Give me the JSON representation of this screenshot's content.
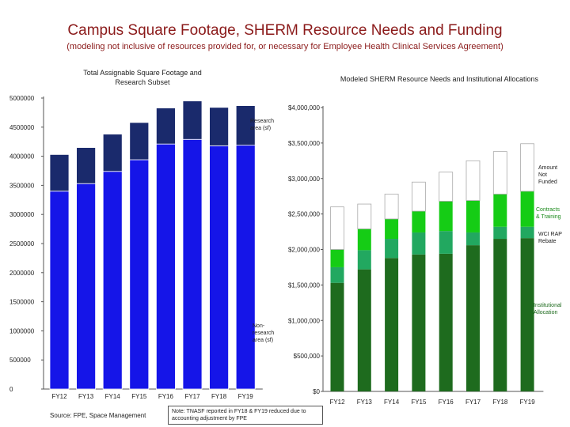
{
  "page": {
    "title": "Campus Square Footage, SHERM Resource Needs and Funding",
    "subtitle": "(modeling not inclusive of resources provided for, or necessary for Employee Health Clinical Services Agreement)",
    "source": "Source: FPE, Space Management",
    "note": "Note: TNASF reported in FY18 & FY19 reduced due to accounting adjustment by FPE"
  },
  "colors": {
    "title": "#8b1a1a",
    "research": "#1a2a6c",
    "non_research": "#1515e8",
    "institutional": "#1e6b1e",
    "wci_rap": "#22a860",
    "contracts": "#15cc15",
    "not_funded": "#ffffff"
  },
  "chart_data": [
    {
      "type": "bar",
      "stacked": true,
      "title": "Total Assignable Square Footage and Research Subset",
      "categories": [
        "FY12",
        "FY13",
        "FY14",
        "FY15",
        "FY16",
        "FY17",
        "FY18",
        "FY19"
      ],
      "ylim": [
        0,
        5000000
      ],
      "yticks": [
        "0",
        "500000",
        "1000000",
        "1500000",
        "2000000",
        "2500000",
        "3000000",
        "3500000",
        "4000000",
        "4500000",
        "5000000"
      ],
      "series": [
        {
          "name": "Non-research area (sf)",
          "values": [
            3400000,
            3530000,
            3740000,
            3940000,
            4210000,
            4290000,
            4180000,
            4190000
          ]
        },
        {
          "name": "Research area (sf)",
          "values": [
            630000,
            620000,
            640000,
            640000,
            620000,
            660000,
            660000,
            680000
          ]
        }
      ],
      "labels": {
        "research": "Research area (sf)",
        "non_research": "Non-research area (sf)"
      }
    },
    {
      "type": "bar",
      "stacked": true,
      "title": "Modeled SHERM Resource Needs and Institutional Allocations",
      "categories": [
        "FY12",
        "FY13",
        "FY14",
        "FY15",
        "FY16",
        "FY17",
        "FY18",
        "FY19"
      ],
      "ylim": [
        0,
        4000000
      ],
      "yticks": [
        "$0",
        "$500,000",
        "$1,000,000",
        "$1,500,000",
        "$2,000,000",
        "$2,500,000",
        "$3,000,000",
        "$3,500,000",
        "$4,000,000"
      ],
      "series": [
        {
          "name": "Institutional Allocation",
          "values": [
            1530000,
            1720000,
            1880000,
            1930000,
            1940000,
            2060000,
            2150000,
            2160000
          ]
        },
        {
          "name": "WCI RAP Rebate",
          "values": [
            220000,
            270000,
            270000,
            310000,
            320000,
            180000,
            170000,
            160000
          ]
        },
        {
          "name": "Contracts & Training",
          "values": [
            250000,
            300000,
            280000,
            300000,
            420000,
            450000,
            460000,
            500000
          ]
        },
        {
          "name": "Amount Not Funded",
          "values": [
            600000,
            350000,
            350000,
            410000,
            410000,
            560000,
            600000,
            670000
          ]
        }
      ],
      "labels": {
        "not_funded": "Amount Not Funded",
        "contracts": "Contracts & Training",
        "wci": "WCI RAP Rebate",
        "institutional": "Institutional Allocation"
      }
    }
  ]
}
